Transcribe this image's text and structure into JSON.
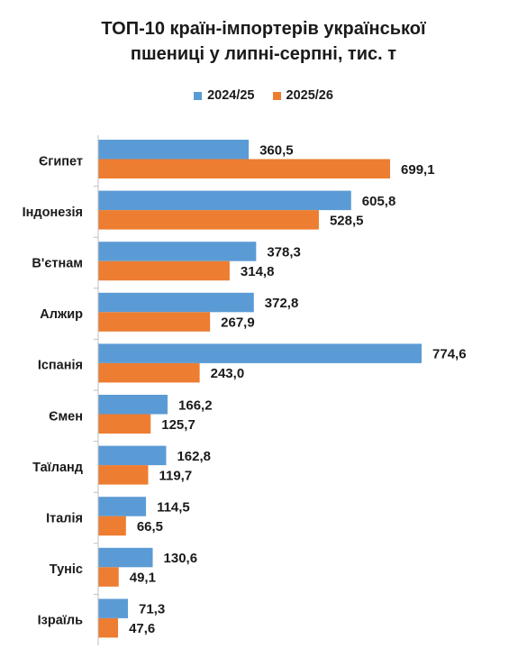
{
  "chart_data": {
    "type": "bar",
    "orientation": "horizontal",
    "title_lines": [
      "ТОП-10 країн-імпортерів української",
      "пшениці у липні-серпні, тис. т"
    ],
    "categories": [
      "Єгипет",
      "Індонезія",
      "В'єтнам",
      "Алжир",
      "Іспанія",
      "Ємен",
      "Таїланд",
      "Італія",
      "Туніс",
      "Ізраїль"
    ],
    "series": [
      {
        "name": "2024/25",
        "color": "#5b9bd5",
        "values": [
          360.5,
          605.8,
          378.3,
          372.8,
          774.6,
          166.2,
          162.8,
          114.5,
          130.6,
          71.3
        ],
        "labels": [
          "360,5",
          "605,8",
          "378,3",
          "372,8",
          "774,6",
          "166,2",
          "162,8",
          "114,5",
          "130,6",
          "71,3"
        ]
      },
      {
        "name": "2025/26",
        "color": "#ed7d31",
        "values": [
          699.1,
          528.5,
          314.8,
          267.9,
          243.0,
          125.7,
          119.7,
          66.5,
          49.1,
          47.6
        ],
        "labels": [
          "699,1",
          "528,5",
          "314,8",
          "267,9",
          "243,0",
          "125,7",
          "119,7",
          "66,5",
          "49,1",
          "47,6"
        ]
      }
    ],
    "legend_position": "top",
    "grid": false,
    "xlim": [
      0,
      800
    ]
  }
}
